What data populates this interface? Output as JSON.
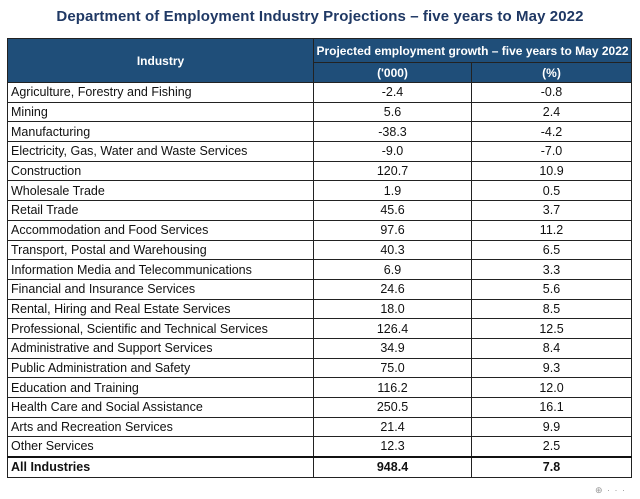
{
  "title": "Department of Employment Industry Projections – five years to May 2022",
  "header": {
    "industry": "Industry",
    "group": "Projected employment growth – five years to May 2022",
    "unit_abs": "('000)",
    "unit_pct": "(%)"
  },
  "rows": [
    {
      "industry": "Agriculture, Forestry and Fishing",
      "abs": "-2.4",
      "pct": "-0.8"
    },
    {
      "industry": "Mining",
      "abs": "5.6",
      "pct": "2.4"
    },
    {
      "industry": "Manufacturing",
      "abs": "-38.3",
      "pct": "-4.2"
    },
    {
      "industry": "Electricity, Gas, Water and Waste Services",
      "abs": "-9.0",
      "pct": "-7.0"
    },
    {
      "industry": "Construction",
      "abs": "120.7",
      "pct": "10.9"
    },
    {
      "industry": "Wholesale Trade",
      "abs": "1.9",
      "pct": "0.5"
    },
    {
      "industry": "Retail Trade",
      "abs": "45.6",
      "pct": "3.7"
    },
    {
      "industry": "Accommodation and Food Services",
      "abs": "97.6",
      "pct": "11.2"
    },
    {
      "industry": "Transport, Postal and Warehousing",
      "abs": "40.3",
      "pct": "6.5"
    },
    {
      "industry": "Information Media and Telecommunications",
      "abs": "6.9",
      "pct": "3.3"
    },
    {
      "industry": "Financial and Insurance Services",
      "abs": "24.6",
      "pct": "5.6"
    },
    {
      "industry": "Rental, Hiring and Real Estate Services",
      "abs": "18.0",
      "pct": "8.5"
    },
    {
      "industry": "Professional, Scientific and Technical Services",
      "abs": "126.4",
      "pct": "12.5"
    },
    {
      "industry": "Administrative and Support Services",
      "abs": "34.9",
      "pct": "8.4"
    },
    {
      "industry": "Public Administration and Safety",
      "abs": "75.0",
      "pct": "9.3"
    },
    {
      "industry": "Education and Training",
      "abs": "116.2",
      "pct": "12.0"
    },
    {
      "industry": "Health Care and Social Assistance",
      "abs": "250.5",
      "pct": "16.1"
    },
    {
      "industry": "Arts and Recreation Services",
      "abs": "21.4",
      "pct": "9.9"
    },
    {
      "industry": "Other Services",
      "abs": "12.3",
      "pct": "2.5"
    }
  ],
  "total": {
    "industry": "All Industries",
    "abs": "948.4",
    "pct": "7.8"
  },
  "colors": {
    "header_bg": "#1f4e79",
    "title": "#1f3864"
  }
}
